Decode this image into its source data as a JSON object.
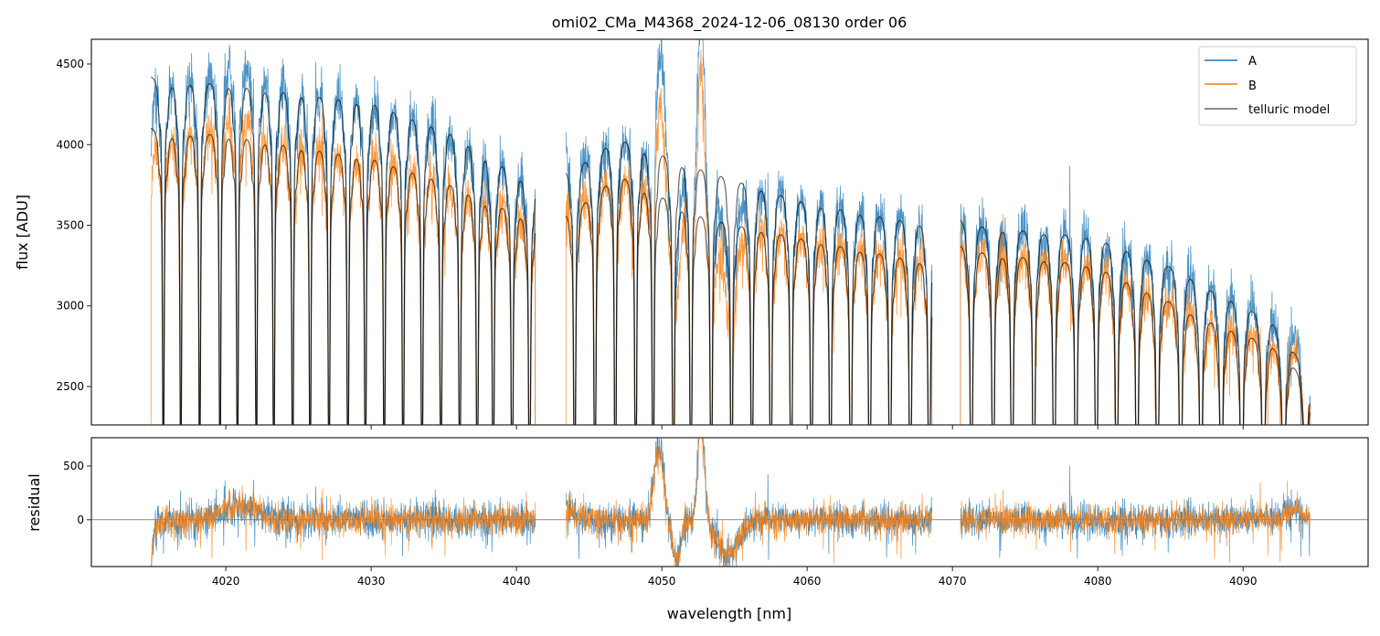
{
  "chart_data": [
    {
      "panel": "top",
      "type": "line",
      "title": "omi02_CMa_M4368_2024-12-06_08130  order 06",
      "xlabel": "",
      "ylabel": "flux [ADU]",
      "xlim": [
        4010.75,
        4098.6
      ],
      "ylim": [
        2262,
        4653
      ],
      "xticks": [
        4020,
        4030,
        4040,
        4050,
        4060,
        4070,
        4080,
        4090
      ],
      "yticks": [
        2500,
        3000,
        3500,
        4000,
        4500
      ],
      "grid": false,
      "legend": {
        "position": "top-right",
        "entries": [
          "A",
          "B",
          "telluric model"
        ]
      },
      "series": [
        {
          "name": "A",
          "color": "#1f77b4"
        },
        {
          "name": "B",
          "color": "#ff7f0e"
        },
        {
          "name": "telluric model",
          "color": "#000000"
        }
      ],
      "segments_nm": [
        [
          4014.85,
          4041.3
        ],
        [
          4043.4,
          4068.6
        ],
        [
          4070.55,
          4094.6
        ]
      ],
      "continuum_A": [
        [
          4014.85,
          4440
        ],
        [
          4020,
          4440
        ],
        [
          4030,
          4330
        ],
        [
          4036,
          4120
        ],
        [
          4041.3,
          3800
        ],
        [
          4043.4,
          3870
        ],
        [
          4047,
          4100
        ],
        [
          4053,
          3900
        ],
        [
          4060,
          3700
        ],
        [
          4068.6,
          3560
        ],
        [
          4070.55,
          3560
        ],
        [
          4080,
          3480
        ],
        [
          4086,
          3250
        ],
        [
          4092,
          2950
        ],
        [
          4094.6,
          2620
        ]
      ],
      "continuum_B": [
        [
          4014.85,
          4120
        ],
        [
          4020,
          4120
        ],
        [
          4030,
          3980
        ],
        [
          4036,
          3800
        ],
        [
          4041.3,
          3580
        ],
        [
          4043.4,
          3600
        ],
        [
          4047,
          3870
        ],
        [
          4053,
          3600
        ],
        [
          4060,
          3470
        ],
        [
          4068.6,
          3320
        ],
        [
          4070.55,
          3400
        ],
        [
          4080,
          3300
        ],
        [
          4086,
          3020
        ],
        [
          4092,
          2800
        ],
        [
          4094.6,
          2560
        ]
      ],
      "telluric_lines_nm": [
        4015.7,
        4016.9,
        4018.2,
        4019.6,
        4020.8,
        4022.1,
        4023.3,
        4024.6,
        4025.8,
        4027.1,
        4028.4,
        4029.6,
        4030.9,
        4032.2,
        4033.5,
        4034.8,
        4036.1,
        4037.3,
        4038.4,
        4039.7,
        4040.9,
        4044.0,
        4045.4,
        4046.8,
        4048.2,
        4049.4,
        4050.8,
        4052.0,
        4053.4,
        4054.8,
        4056.2,
        4057.5,
        4058.9,
        4060.3,
        4061.6,
        4063.0,
        4064.3,
        4065.7,
        4067.1,
        4068.4,
        4071.3,
        4072.8,
        4074.1,
        4075.6,
        4077.0,
        4078.5,
        4079.9,
        4081.3,
        4082.7,
        4084.1,
        4085.7,
        4087.1,
        4088.5,
        4089.9,
        4091.4,
        4092.8,
        4094.3
      ]
    },
    {
      "panel": "bottom",
      "type": "line",
      "xlabel": "wavelength [nm]",
      "ylabel": "residual",
      "xlim": [
        4010.75,
        4098.6
      ],
      "ylim": [
        -435,
        763
      ],
      "xticks": [
        4020,
        4030,
        4040,
        4050,
        4060,
        4070,
        4080,
        4090
      ],
      "yticks": [
        0,
        500
      ],
      "zero_line": true,
      "emission_features": [
        {
          "center_nm": 4049.8,
          "residual": 700
        },
        {
          "center_nm": 4051.0,
          "residual": -400
        },
        {
          "center_nm": 4052.7,
          "residual": 1000
        },
        {
          "center_nm": 4054.5,
          "residual": -350
        }
      ]
    }
  ]
}
